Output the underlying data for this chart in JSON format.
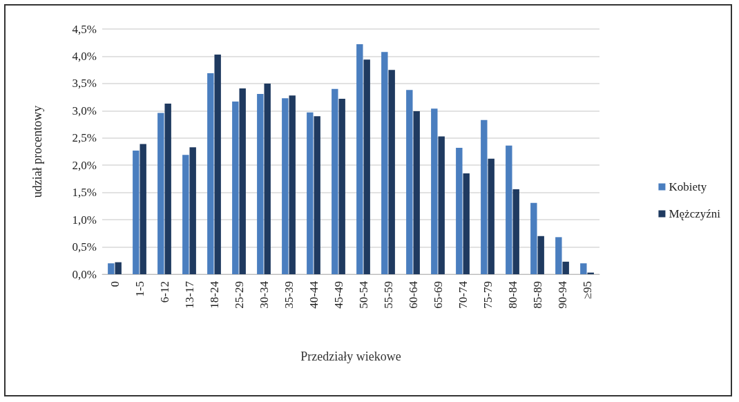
{
  "chart_data": {
    "type": "bar",
    "xlabel": "Przedziały wiekowe",
    "ylabel": "udział procentowy",
    "categories": [
      "0",
      "1-5",
      "6-12",
      "13-17",
      "18-24",
      "25-29",
      "30-34",
      "35-39",
      "40-44",
      "45-49",
      "50-54",
      "55-59",
      "60-64",
      "65-69",
      "70-74",
      "75-79",
      "80-84",
      "85-89",
      "90-94",
      "≥95"
    ],
    "series": [
      {
        "name": "Kobiety",
        "color": "#4a7ebf",
        "values": [
          0.2,
          2.27,
          2.96,
          2.19,
          3.69,
          3.17,
          3.31,
          3.23,
          2.97,
          3.4,
          4.22,
          4.08,
          3.38,
          3.04,
          2.32,
          2.83,
          2.36,
          1.31,
          0.68,
          0.2
        ]
      },
      {
        "name": "Mężczyźni",
        "color": "#1f3a60",
        "values": [
          0.22,
          2.39,
          3.13,
          2.33,
          4.03,
          3.41,
          3.5,
          3.28,
          2.9,
          3.22,
          3.94,
          3.75,
          2.99,
          2.53,
          1.85,
          2.12,
          1.56,
          0.7,
          0.23,
          0.03
        ]
      }
    ],
    "ylim": [
      0,
      4.5
    ],
    "yticks": [
      {
        "value": 0,
        "label": "0,0%"
      },
      {
        "value": 0.5,
        "label": "0,5%"
      },
      {
        "value": 1,
        "label": "1,0%"
      },
      {
        "value": 1.5,
        "label": "1,5%"
      },
      {
        "value": 2,
        "label": "2,0%"
      },
      {
        "value": 2.5,
        "label": "2,5%"
      },
      {
        "value": 3,
        "label": "3,0%"
      },
      {
        "value": 3.5,
        "label": "3,5%"
      },
      {
        "value": 4,
        "label": "4,0%"
      },
      {
        "value": 4.5,
        "label": "4,5%"
      }
    ],
    "grid": "y",
    "legend": "right"
  }
}
